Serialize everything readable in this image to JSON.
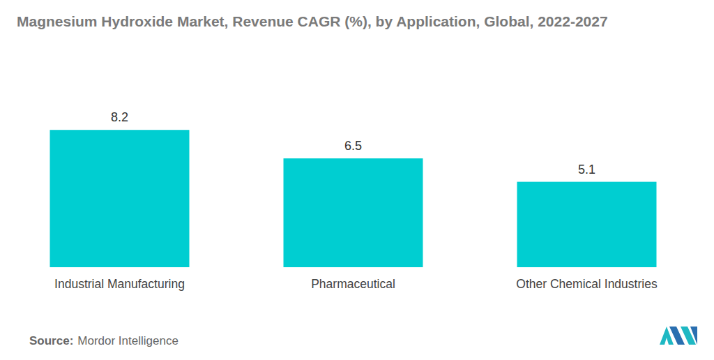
{
  "chart_data": {
    "type": "bar",
    "title": "Magnesium Hydroxide Market, Revenue CAGR (%), by Application, Global, 2022-2027",
    "categories": [
      "Industrial Manufacturing",
      "Pharmaceutical",
      "Other Chemical Industries"
    ],
    "values": [
      8.2,
      6.5,
      5.1
    ],
    "color": "#00ced1",
    "ylim": [
      0,
      10
    ],
    "grid": false,
    "data_labels": true,
    "tick_labels": "x"
  },
  "footer": {
    "source_label": "Source:",
    "source": "Mordor Intelligence"
  }
}
